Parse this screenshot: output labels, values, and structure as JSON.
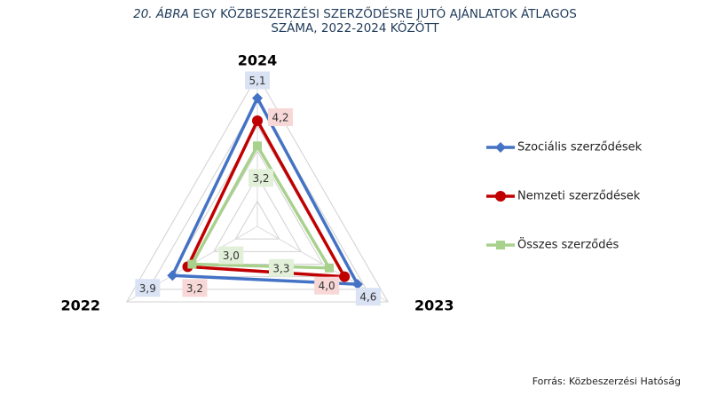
{
  "chart_data": {
    "type": "radar",
    "figure_label": "20. ÁBRA",
    "title": "EGY KÖZBESZERZÉSI SZERZŐDÉSRE JUTÓ AJÁNLATOK ÁTLAGOS SZÁMA, 2022-2024 KÖZÖTT",
    "source": "Forrás: Közbeszerzési Hatóság",
    "categories": [
      "2024",
      "2023",
      "2022"
    ],
    "rlim": [
      0,
      6
    ],
    "rticks": [
      1,
      2,
      3,
      4,
      5,
      6
    ],
    "grid": true,
    "legend": "right",
    "series": [
      {
        "name": "Szociális szerződések",
        "color": "#4472c4",
        "marker": "diamond",
        "values": [
          5.1,
          4.6,
          3.9
        ],
        "value_labels": [
          "5,1",
          "4,6",
          "3,9"
        ]
      },
      {
        "name": "Nemzeti szerződések",
        "color": "#c00000",
        "marker": "circle",
        "values": [
          4.2,
          4.0,
          3.2
        ],
        "value_labels": [
          "4,2",
          "4,0",
          "3,2"
        ]
      },
      {
        "name": "Összes szerződés",
        "color": "#a9d18e",
        "marker": "square",
        "values": [
          3.2,
          3.3,
          3.0
        ],
        "value_labels": [
          "3,2",
          "3,3",
          "3,0"
        ]
      }
    ]
  }
}
